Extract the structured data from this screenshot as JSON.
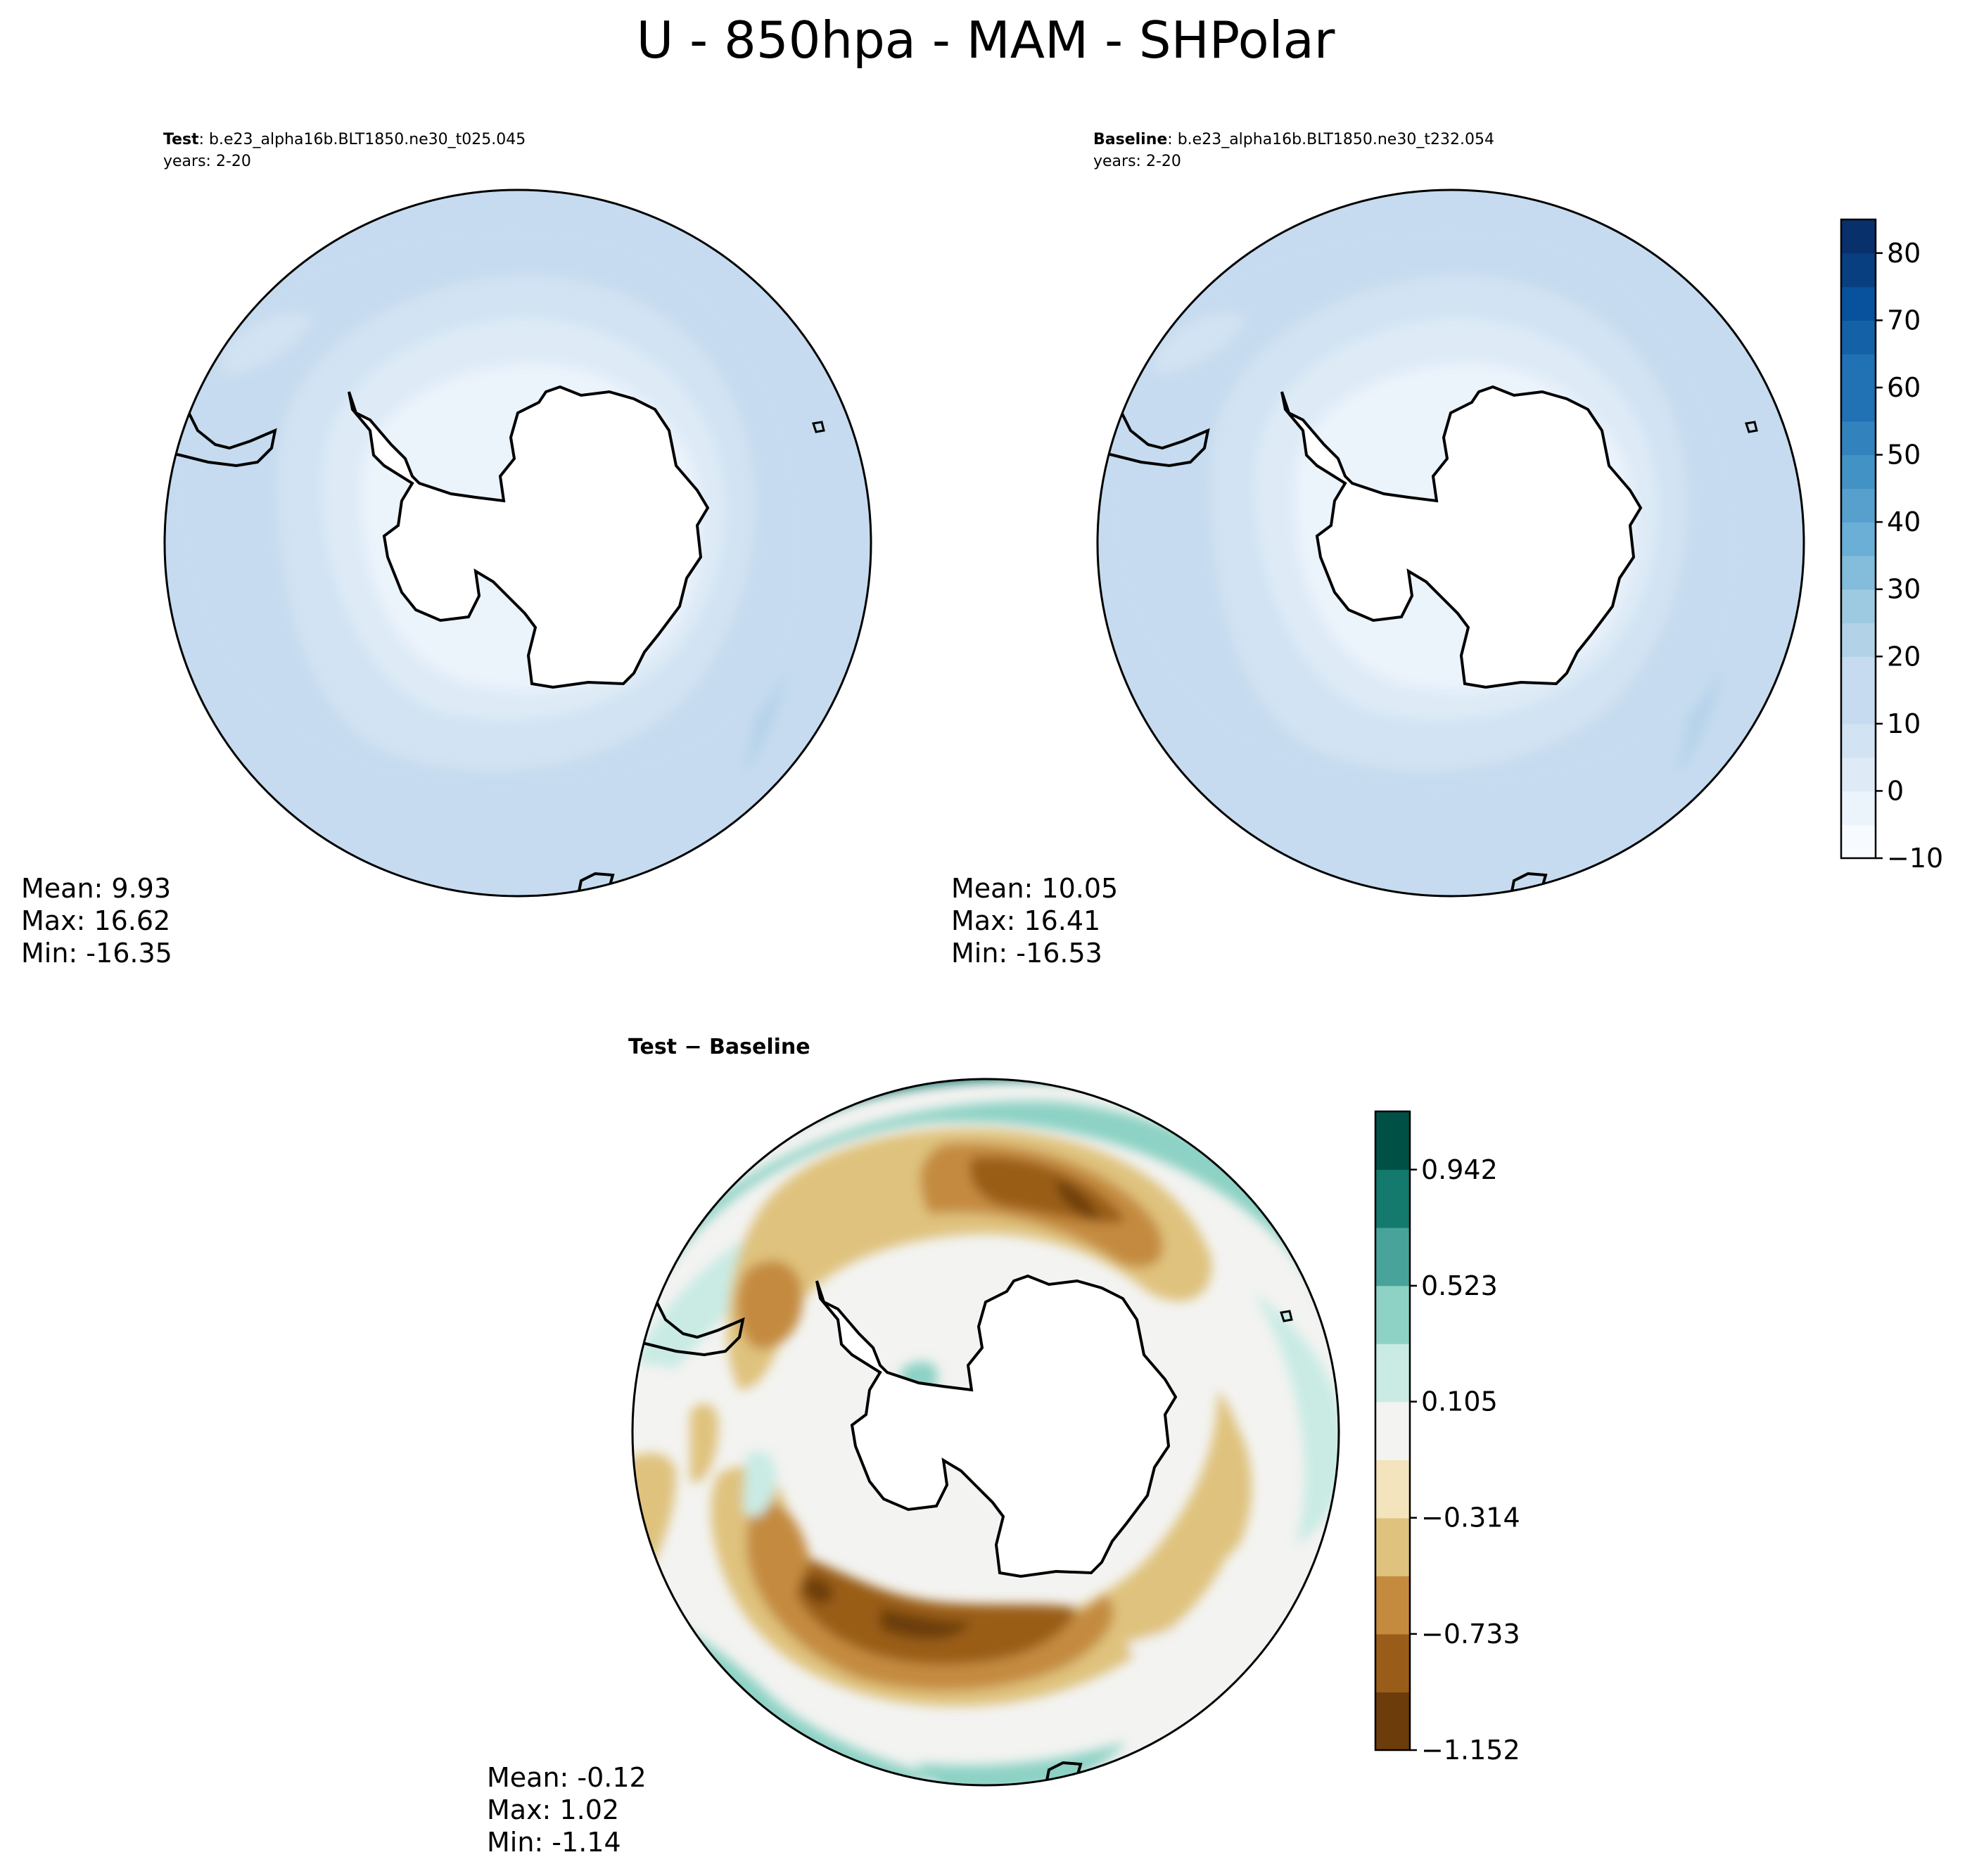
{
  "figure": {
    "title": "U - 850hpa - MAM - SHPolar"
  },
  "panels": {
    "test": {
      "label": "Test",
      "case": ": b.e23_alpha16b.BLT1850.ne30_t025.045",
      "years": "years: 2-20",
      "stats": {
        "mean": "Mean:  9.93",
        "max": "Max: 16.62",
        "min": "Min: -16.35"
      }
    },
    "baseline": {
      "label": "Baseline",
      "case": ": b.e23_alpha16b.BLT1850.ne30_t232.054",
      "years": "years: 2-20",
      "stats": {
        "mean": "Mean: 10.05",
        "max": "Max: 16.41",
        "min": "Min: -16.53"
      }
    },
    "diff": {
      "title": "Test − Baseline",
      "stats": {
        "mean": "Mean: -0.12",
        "max": "Max:  1.02",
        "min": "Min: -1.14"
      }
    }
  },
  "chart_data": [
    {
      "type": "heatmap",
      "projection": "south-polar-stereographic",
      "name": "Test",
      "colormap": "Blues",
      "levels": [
        -10,
        -5,
        0,
        5,
        10,
        15,
        20,
        25,
        30,
        35,
        40,
        45,
        50,
        55,
        60,
        65,
        70,
        75,
        80,
        85
      ],
      "colorbar_ticks": [
        "80",
        "70",
        "60",
        "50",
        "40",
        "30",
        "20",
        "10",
        "0",
        "−10"
      ],
      "mean": 9.93,
      "max": 16.62,
      "min": -16.35
    },
    {
      "type": "heatmap",
      "projection": "south-polar-stereographic",
      "name": "Baseline",
      "colormap": "Blues",
      "levels": [
        -10,
        -5,
        0,
        5,
        10,
        15,
        20,
        25,
        30,
        35,
        40,
        45,
        50,
        55,
        60,
        65,
        70,
        75,
        80,
        85
      ],
      "colorbar_ticks": [
        "80",
        "70",
        "60",
        "50",
        "40",
        "30",
        "20",
        "10",
        "0",
        "−10"
      ],
      "mean": 10.05,
      "max": 16.41,
      "min": -16.53
    },
    {
      "type": "heatmap",
      "projection": "south-polar-stereographic",
      "name": "Test − Baseline",
      "colormap": "BrBG",
      "levels": [
        -1.152,
        -0.942,
        -0.733,
        -0.523,
        -0.314,
        -0.105,
        0.105,
        0.314,
        0.523,
        0.733,
        0.942,
        1.152
      ],
      "colorbar_ticks": [
        "0.942",
        "0.523",
        "0.105",
        "−0.314",
        "−0.733",
        "−1.152"
      ],
      "mean": -0.12,
      "max": 1.02,
      "min": -1.14
    }
  ],
  "colors": {
    "blues": [
      "#f7fbff",
      "#ebf3fb",
      "#deebf7",
      "#d2e3f3",
      "#c6dbef",
      "#b2d2e8",
      "#9ecae1",
      "#84bcdb",
      "#6baed6",
      "#57a0ce",
      "#4292c6",
      "#3282be",
      "#2171b5",
      "#1461a8",
      "#08519c",
      "#083f80",
      "#08306b"
    ],
    "brbg": [
      "#6c3c0a",
      "#9a5d19",
      "#c48b3f",
      "#dfc27d",
      "#f4e4bd",
      "#f3f3f1",
      "#c9ebe4",
      "#8dd2c5",
      "#48a49a",
      "#147a6e",
      "#015046"
    ]
  }
}
